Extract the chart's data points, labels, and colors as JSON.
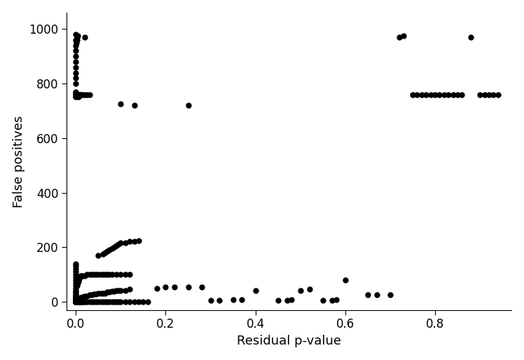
{
  "title": "",
  "xlabel": "Residual p-value",
  "ylabel": "False positives",
  "xlim": [
    -0.02,
    0.97
  ],
  "ylim": [
    -30,
    1060
  ],
  "xticks": [
    0.0,
    0.2,
    0.4,
    0.6,
    0.8
  ],
  "yticks": [
    0,
    200,
    400,
    600,
    800,
    1000
  ],
  "marker_size": 25,
  "marker_color": "black",
  "points": [
    [
      0.0,
      0
    ],
    [
      0.0,
      0
    ],
    [
      0.0,
      0
    ],
    [
      0.0,
      0
    ],
    [
      0.0,
      0
    ],
    [
      0.0,
      0
    ],
    [
      0.0,
      0
    ],
    [
      0.0,
      0
    ],
    [
      0.0,
      0
    ],
    [
      0.0,
      0
    ],
    [
      0.0,
      0
    ],
    [
      0.0,
      0
    ],
    [
      0.0,
      0
    ],
    [
      0.0,
      0
    ],
    [
      0.0,
      0
    ],
    [
      0.0,
      2
    ],
    [
      0.0,
      3
    ],
    [
      0.0,
      4
    ],
    [
      0.0,
      5
    ],
    [
      0.0,
      6
    ],
    [
      0.0,
      8
    ],
    [
      0.0,
      10
    ],
    [
      0.0,
      12
    ],
    [
      0.0,
      15
    ],
    [
      0.0,
      18
    ],
    [
      0.0,
      20
    ],
    [
      0.0,
      25
    ],
    [
      0.0,
      30
    ],
    [
      0.0,
      35
    ],
    [
      0.0,
      40
    ],
    [
      0.0,
      50
    ],
    [
      0.0,
      60
    ],
    [
      0.0,
      70
    ],
    [
      0.0,
      80
    ],
    [
      0.0,
      90
    ],
    [
      0.0,
      100
    ],
    [
      0.0,
      110
    ],
    [
      0.0,
      120
    ],
    [
      0.0,
      130
    ],
    [
      0.0,
      140
    ],
    [
      0.0,
      800
    ],
    [
      0.0,
      820
    ],
    [
      0.0,
      840
    ],
    [
      0.0,
      860
    ],
    [
      0.0,
      880
    ],
    [
      0.0,
      900
    ],
    [
      0.0,
      920
    ],
    [
      0.0,
      940
    ],
    [
      0.0,
      960
    ],
    [
      0.0,
      980
    ],
    [
      0.0,
      750
    ],
    [
      0.0,
      755
    ],
    [
      0.0,
      760
    ],
    [
      0.0,
      765
    ],
    [
      0.0,
      770
    ],
    [
      0.002,
      0
    ],
    [
      0.003,
      0
    ],
    [
      0.004,
      0
    ],
    [
      0.005,
      0
    ],
    [
      0.006,
      0
    ],
    [
      0.007,
      0
    ],
    [
      0.008,
      0
    ],
    [
      0.009,
      0
    ],
    [
      0.01,
      0
    ],
    [
      0.012,
      0
    ],
    [
      0.015,
      0
    ],
    [
      0.018,
      0
    ],
    [
      0.02,
      0
    ],
    [
      0.025,
      0
    ],
    [
      0.03,
      0
    ],
    [
      0.035,
      0
    ],
    [
      0.04,
      0
    ],
    [
      0.045,
      0
    ],
    [
      0.05,
      0
    ],
    [
      0.055,
      0
    ],
    [
      0.06,
      0
    ],
    [
      0.065,
      0
    ],
    [
      0.07,
      0
    ],
    [
      0.075,
      0
    ],
    [
      0.08,
      0
    ],
    [
      0.085,
      0
    ],
    [
      0.09,
      0
    ],
    [
      0.095,
      0
    ],
    [
      0.1,
      0
    ],
    [
      0.11,
      0
    ],
    [
      0.12,
      0
    ],
    [
      0.13,
      0
    ],
    [
      0.14,
      0
    ],
    [
      0.15,
      0
    ],
    [
      0.16,
      0
    ],
    [
      0.002,
      5
    ],
    [
      0.003,
      5
    ],
    [
      0.004,
      8
    ],
    [
      0.005,
      8
    ],
    [
      0.006,
      10
    ],
    [
      0.007,
      10
    ],
    [
      0.008,
      12
    ],
    [
      0.01,
      15
    ],
    [
      0.012,
      15
    ],
    [
      0.015,
      18
    ],
    [
      0.02,
      20
    ],
    [
      0.025,
      20
    ],
    [
      0.03,
      25
    ],
    [
      0.035,
      25
    ],
    [
      0.04,
      28
    ],
    [
      0.045,
      28
    ],
    [
      0.05,
      30
    ],
    [
      0.055,
      30
    ],
    [
      0.06,
      32
    ],
    [
      0.065,
      32
    ],
    [
      0.07,
      35
    ],
    [
      0.075,
      35
    ],
    [
      0.08,
      38
    ],
    [
      0.085,
      38
    ],
    [
      0.09,
      40
    ],
    [
      0.095,
      40
    ],
    [
      0.1,
      42
    ],
    [
      0.11,
      42
    ],
    [
      0.12,
      45
    ],
    [
      0.002,
      60
    ],
    [
      0.003,
      65
    ],
    [
      0.004,
      70
    ],
    [
      0.005,
      75
    ],
    [
      0.006,
      80
    ],
    [
      0.007,
      85
    ],
    [
      0.008,
      90
    ],
    [
      0.009,
      90
    ],
    [
      0.01,
      95
    ],
    [
      0.012,
      95
    ],
    [
      0.015,
      95
    ],
    [
      0.02,
      95
    ],
    [
      0.025,
      100
    ],
    [
      0.03,
      100
    ],
    [
      0.035,
      100
    ],
    [
      0.04,
      100
    ],
    [
      0.045,
      100
    ],
    [
      0.05,
      100
    ],
    [
      0.055,
      100
    ],
    [
      0.06,
      100
    ],
    [
      0.065,
      100
    ],
    [
      0.07,
      100
    ],
    [
      0.075,
      100
    ],
    [
      0.08,
      100
    ],
    [
      0.09,
      100
    ],
    [
      0.1,
      100
    ],
    [
      0.11,
      100
    ],
    [
      0.12,
      100
    ],
    [
      0.05,
      170
    ],
    [
      0.06,
      175
    ],
    [
      0.065,
      180
    ],
    [
      0.07,
      185
    ],
    [
      0.075,
      190
    ],
    [
      0.08,
      195
    ],
    [
      0.085,
      200
    ],
    [
      0.09,
      205
    ],
    [
      0.095,
      210
    ],
    [
      0.1,
      215
    ],
    [
      0.11,
      215
    ],
    [
      0.12,
      220
    ],
    [
      0.13,
      220
    ],
    [
      0.14,
      225
    ],
    [
      0.005,
      750
    ],
    [
      0.006,
      755
    ],
    [
      0.007,
      760
    ],
    [
      0.008,
      760
    ],
    [
      0.009,
      760
    ],
    [
      0.01,
      760
    ],
    [
      0.012,
      760
    ],
    [
      0.015,
      760
    ],
    [
      0.02,
      760
    ],
    [
      0.025,
      760
    ],
    [
      0.03,
      760
    ],
    [
      0.001,
      950
    ],
    [
      0.002,
      960
    ],
    [
      0.003,
      970
    ],
    [
      0.004,
      975
    ],
    [
      0.02,
      970
    ],
    [
      0.1,
      725
    ],
    [
      0.13,
      720
    ],
    [
      0.25,
      720
    ],
    [
      0.18,
      50
    ],
    [
      0.2,
      55
    ],
    [
      0.22,
      55
    ],
    [
      0.25,
      55
    ],
    [
      0.28,
      55
    ],
    [
      0.3,
      5
    ],
    [
      0.32,
      5
    ],
    [
      0.35,
      8
    ],
    [
      0.37,
      8
    ],
    [
      0.4,
      40
    ],
    [
      0.45,
      5
    ],
    [
      0.47,
      5
    ],
    [
      0.48,
      8
    ],
    [
      0.5,
      40
    ],
    [
      0.52,
      45
    ],
    [
      0.55,
      5
    ],
    [
      0.57,
      5
    ],
    [
      0.58,
      8
    ],
    [
      0.6,
      80
    ],
    [
      0.65,
      25
    ],
    [
      0.67,
      25
    ],
    [
      0.7,
      25
    ],
    [
      0.72,
      970
    ],
    [
      0.73,
      975
    ],
    [
      0.75,
      760
    ],
    [
      0.76,
      760
    ],
    [
      0.77,
      760
    ],
    [
      0.78,
      760
    ],
    [
      0.79,
      760
    ],
    [
      0.8,
      760
    ],
    [
      0.81,
      760
    ],
    [
      0.82,
      760
    ],
    [
      0.83,
      760
    ],
    [
      0.84,
      760
    ],
    [
      0.85,
      760
    ],
    [
      0.86,
      760
    ],
    [
      0.88,
      970
    ],
    [
      0.9,
      760
    ],
    [
      0.91,
      760
    ],
    [
      0.92,
      760
    ],
    [
      0.93,
      760
    ],
    [
      0.94,
      760
    ]
  ]
}
